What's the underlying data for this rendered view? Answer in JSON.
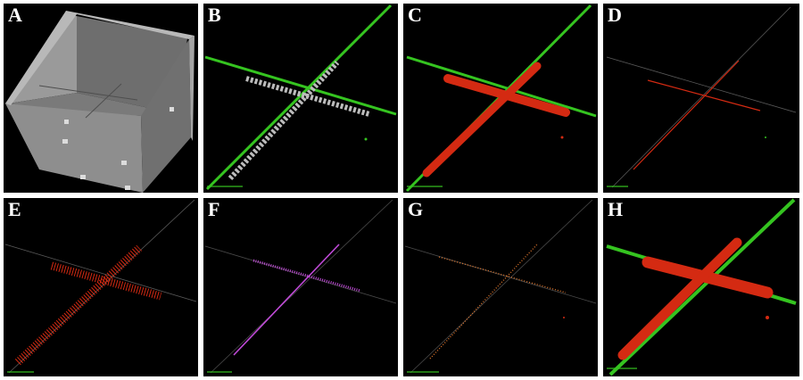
{
  "figure": {
    "panels": [
      {
        "id": "A",
        "label": "A",
        "content": "3d-box-render"
      },
      {
        "id": "B",
        "label": "B",
        "content": "gray-cross-with-green-axes"
      },
      {
        "id": "C",
        "label": "C",
        "content": "red-cross-with-green-axes"
      },
      {
        "id": "D",
        "label": "D",
        "content": "thin-red-cross"
      },
      {
        "id": "E",
        "label": "E",
        "content": "red-hatched-cross"
      },
      {
        "id": "F",
        "label": "F",
        "content": "magenta-cross"
      },
      {
        "id": "G",
        "label": "G",
        "content": "orange-dotted-cross"
      },
      {
        "id": "H",
        "label": "H",
        "content": "red-tube-cross-with-green-axes"
      }
    ]
  },
  "colors": {
    "background": "#000000",
    "axis_green": "#35c420",
    "tube_red": "#d42a12",
    "gray_tube": "#bcbcbc",
    "box_gray": "#8c8c8c",
    "magenta": "#c04ad8",
    "orange": "#d8732c"
  }
}
